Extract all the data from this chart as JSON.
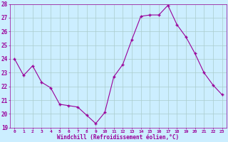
{
  "x": [
    0,
    1,
    2,
    3,
    4,
    5,
    6,
    7,
    8,
    9,
    10,
    11,
    12,
    13,
    14,
    15,
    16,
    17,
    18,
    19,
    20,
    21,
    22,
    23
  ],
  "y": [
    24.0,
    22.8,
    23.5,
    22.3,
    21.9,
    20.7,
    20.6,
    20.5,
    19.9,
    19.3,
    20.1,
    22.7,
    23.6,
    25.4,
    27.1,
    27.2,
    27.2,
    27.9,
    26.5,
    25.6,
    24.4,
    23.0,
    22.1,
    21.4
  ],
  "line_color": "#990099",
  "marker": "+",
  "marker_size": 4,
  "bg_color": "#cceeff",
  "grid_color": "#aacccc",
  "xlabel": "Windchill (Refroidissement éolien,°C)",
  "xlabel_color": "#990099",
  "tick_color": "#990099",
  "label_color": "#990099",
  "ylim": [
    19,
    28
  ],
  "xlim": [
    -0.5,
    23.5
  ],
  "yticks": [
    19,
    20,
    21,
    22,
    23,
    24,
    25,
    26,
    27,
    28
  ],
  "xticks": [
    0,
    1,
    2,
    3,
    4,
    5,
    6,
    7,
    8,
    9,
    10,
    11,
    12,
    13,
    14,
    15,
    16,
    17,
    18,
    19,
    20,
    21,
    22,
    23
  ]
}
